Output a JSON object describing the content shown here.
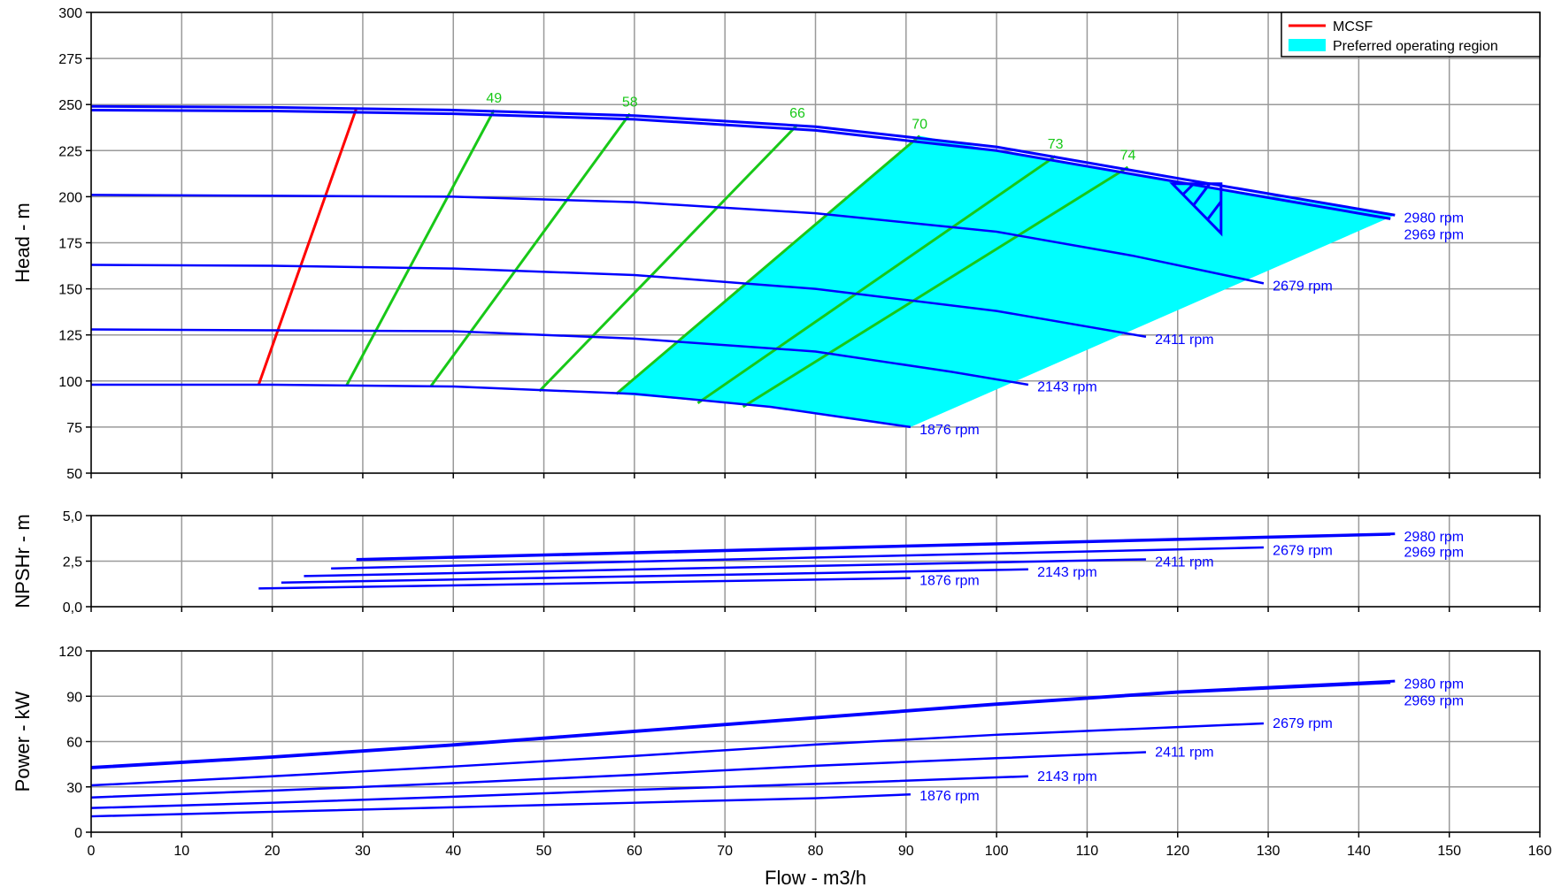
{
  "chart_data": [
    {
      "type": "line",
      "id": "head",
      "ylabel": "Head - m",
      "xlim": [
        0,
        160
      ],
      "ylim": [
        50,
        300
      ],
      "x_ticks": [
        0,
        10,
        20,
        30,
        40,
        50,
        60,
        70,
        80,
        90,
        100,
        110,
        120,
        130,
        140,
        150,
        160
      ],
      "y_ticks": [
        50,
        75,
        100,
        125,
        150,
        175,
        200,
        225,
        250,
        275,
        300
      ],
      "y_tick_labels": [
        "50",
        "75",
        "100",
        "125",
        "150",
        "175",
        "200",
        "225",
        "250",
        "275",
        "300"
      ],
      "grid": true,
      "legend_placement": "top-right",
      "legend": [
        {
          "label": "MCSF",
          "kind": "line",
          "color": "#ff0000"
        },
        {
          "label": "Preferred operating region",
          "kind": "area",
          "color": "#00ffff"
        }
      ],
      "series": [
        {
          "name": "2980 rpm",
          "color": "#0000ff",
          "width": 3,
          "points": [
            [
              0,
              249
            ],
            [
              20,
              248.5
            ],
            [
              40,
              247
            ],
            [
              60,
              244
            ],
            [
              80,
              238
            ],
            [
              100,
              227
            ],
            [
              120,
              210
            ],
            [
              144,
              190
            ]
          ]
        },
        {
          "name": "2969 rpm",
          "color": "#0000ff",
          "width": 3,
          "points": [
            [
              0,
              247
            ],
            [
              20,
              246.5
            ],
            [
              40,
              245
            ],
            [
              60,
              242
            ],
            [
              80,
              236
            ],
            [
              100,
              225
            ],
            [
              120,
              208
            ],
            [
              143.5,
              188
            ]
          ]
        },
        {
          "name": "2679 rpm",
          "color": "#0000ff",
          "width": 2.5,
          "points": [
            [
              0,
              201
            ],
            [
              20,
              200.5
            ],
            [
              40,
              200
            ],
            [
              60,
              197
            ],
            [
              80,
              191
            ],
            [
              100,
              181
            ],
            [
              115,
              168
            ],
            [
              129.5,
              153
            ]
          ]
        },
        {
          "name": "2411 rpm",
          "color": "#0000ff",
          "width": 2.5,
          "points": [
            [
              0,
              163
            ],
            [
              20,
              162.5
            ],
            [
              40,
              161
            ],
            [
              60,
              157.5
            ],
            [
              80,
              150
            ],
            [
              100,
              138
            ],
            [
              116.5,
              124
            ]
          ]
        },
        {
          "name": "2143 rpm",
          "color": "#0000ff",
          "width": 2.5,
          "points": [
            [
              0,
              128
            ],
            [
              20,
              127.5
            ],
            [
              40,
              127
            ],
            [
              60,
              123
            ],
            [
              80,
              116
            ],
            [
              95,
              105
            ],
            [
              103.5,
              98
            ]
          ]
        },
        {
          "name": "1876 rpm",
          "color": "#0000ff",
          "width": 2.5,
          "points": [
            [
              0,
              98
            ],
            [
              20,
              98
            ],
            [
              40,
              97
            ],
            [
              60,
              93
            ],
            [
              75,
              86
            ],
            [
              90.5,
              75
            ]
          ]
        }
      ],
      "mcsf": {
        "color": "#ff0000",
        "points": [
          [
            18.5,
            98
          ],
          [
            29.3,
            248
          ]
        ]
      },
      "efficiency_lines": [
        {
          "label": "49",
          "points": [
            [
              28.2,
              97.5
            ],
            [
              44.5,
              247
            ]
          ],
          "label_at": [
            44.5,
            251
          ]
        },
        {
          "label": "58",
          "points": [
            [
              37.5,
              97
            ],
            [
              59.5,
              245
            ]
          ],
          "label_at": [
            59.5,
            249
          ]
        },
        {
          "label": "66",
          "points": [
            [
              49.5,
              94.5
            ],
            [
              78,
              239
            ]
          ],
          "label_at": [
            78,
            243
          ]
        },
        {
          "label": "70",
          "points": [
            [
              58,
              93
            ],
            [
              91.5,
              233
            ]
          ],
          "label_at": [
            91.5,
            237
          ]
        },
        {
          "label": "73",
          "points": [
            [
              67,
              88
            ],
            [
              106.5,
              222
            ]
          ],
          "label_at": [
            106.5,
            226
          ]
        },
        {
          "label": "74",
          "points": [
            [
              72,
              86
            ],
            [
              114.5,
              216
            ]
          ],
          "label_at": [
            114.5,
            220
          ]
        }
      ],
      "efficiency_color": "#18c818",
      "preferred_region": {
        "color": "#00ffff",
        "polygon": [
          [
            58,
            93
          ],
          [
            75,
            86
          ],
          [
            90.5,
            75
          ],
          [
            144,
            190
          ],
          [
            120,
            208
          ],
          [
            100,
            225
          ],
          [
            91.5,
            233
          ]
        ]
      },
      "duty_point": {
        "flow": 124.5,
        "head": 207,
        "color": "#0000ff"
      },
      "rpm_labels": [
        {
          "text": "2980 rpm",
          "at": [
            145,
            186
          ]
        },
        {
          "text": "2969 rpm",
          "at": [
            145,
            177
          ]
        },
        {
          "text": "2679 rpm",
          "at": [
            130.5,
            149
          ]
        },
        {
          "text": "2411 rpm",
          "at": [
            117.5,
            120
          ]
        },
        {
          "text": "2143 rpm",
          "at": [
            104.5,
            94.5
          ]
        },
        {
          "text": "1876 rpm",
          "at": [
            91.5,
            71
          ]
        }
      ]
    },
    {
      "type": "line",
      "id": "npshr",
      "ylabel": "NPSHr - m",
      "xlim": [
        0,
        160
      ],
      "ylim": [
        0,
        5
      ],
      "x_ticks": [
        0,
        10,
        20,
        30,
        40,
        50,
        60,
        70,
        80,
        90,
        100,
        110,
        120,
        130,
        140,
        150,
        160
      ],
      "y_ticks": [
        0,
        2.5,
        5
      ],
      "y_tick_labels": [
        "0,0",
        "2,5",
        "5,0"
      ],
      "grid": true,
      "series": [
        {
          "name": "2980 rpm",
          "color": "#0000ff",
          "width": 3,
          "points": [
            [
              29.3,
              2.6
            ],
            [
              144,
              4.0
            ]
          ]
        },
        {
          "name": "2969 rpm",
          "color": "#0000ff",
          "width": 3,
          "points": [
            [
              29.3,
              2.57
            ],
            [
              143.5,
              3.97
            ]
          ]
        },
        {
          "name": "2679 rpm",
          "color": "#0000ff",
          "width": 2.5,
          "points": [
            [
              26.5,
              2.1
            ],
            [
              129.5,
              3.25
            ]
          ]
        },
        {
          "name": "2411 rpm",
          "color": "#0000ff",
          "width": 2.5,
          "points": [
            [
              23.5,
              1.68
            ],
            [
              116.5,
              2.6
            ]
          ]
        },
        {
          "name": "2143 rpm",
          "color": "#0000ff",
          "width": 2.5,
          "points": [
            [
              21,
              1.32
            ],
            [
              103.5,
              2.05
            ]
          ]
        },
        {
          "name": "1876 rpm",
          "color": "#0000ff",
          "width": 2.5,
          "points": [
            [
              18.5,
              1.0
            ],
            [
              90.5,
              1.57
            ]
          ]
        }
      ],
      "rpm_labels": [
        {
          "text": "2980 rpm",
          "at": [
            145,
            3.6
          ]
        },
        {
          "text": "2969 rpm",
          "at": [
            145,
            2.75
          ]
        },
        {
          "text": "2679 rpm",
          "at": [
            130.5,
            2.85
          ]
        },
        {
          "text": "2411 rpm",
          "at": [
            117.5,
            2.2
          ]
        },
        {
          "text": "2143 rpm",
          "at": [
            104.5,
            1.65
          ]
        },
        {
          "text": "1876 rpm",
          "at": [
            91.5,
            1.2
          ]
        }
      ]
    },
    {
      "type": "line",
      "id": "power",
      "ylabel": "Power - kW",
      "xlabel": "Flow - m3/h",
      "xlim": [
        0,
        160
      ],
      "ylim": [
        0,
        120
      ],
      "x_ticks": [
        0,
        10,
        20,
        30,
        40,
        50,
        60,
        70,
        80,
        90,
        100,
        110,
        120,
        130,
        140,
        150,
        160
      ],
      "x_tick_labels": [
        "0",
        "10",
        "20",
        "30",
        "40",
        "50",
        "60",
        "70",
        "80",
        "90",
        "100",
        "110",
        "120",
        "130",
        "140",
        "150",
        "160"
      ],
      "y_ticks": [
        0,
        30,
        60,
        90,
        120
      ],
      "y_tick_labels": [
        "0",
        "30",
        "60",
        "90",
        "120"
      ],
      "grid": true,
      "series": [
        {
          "name": "2980 rpm",
          "color": "#0000ff",
          "width": 3,
          "points": [
            [
              0,
              43
            ],
            [
              20,
              50
            ],
            [
              40,
              58
            ],
            [
              60,
              67
            ],
            [
              80,
              76
            ],
            [
              100,
              85
            ],
            [
              120,
              93
            ],
            [
              144,
              100
            ]
          ]
        },
        {
          "name": "2969 rpm",
          "color": "#0000ff",
          "width": 3,
          "points": [
            [
              0,
              42.5
            ],
            [
              20,
              49.5
            ],
            [
              40,
              57.5
            ],
            [
              60,
              66.5
            ],
            [
              80,
              75.5
            ],
            [
              100,
              84.5
            ],
            [
              120,
              92.5
            ],
            [
              143.5,
              99
            ]
          ]
        },
        {
          "name": "2679 rpm",
          "color": "#0000ff",
          "width": 2.5,
          "points": [
            [
              0,
              31
            ],
            [
              20,
              37
            ],
            [
              40,
              43.5
            ],
            [
              60,
              50.5
            ],
            [
              80,
              58
            ],
            [
              100,
              64.5
            ],
            [
              129.5,
              72
            ]
          ]
        },
        {
          "name": "2411 rpm",
          "color": "#0000ff",
          "width": 2.5,
          "points": [
            [
              0,
              23
            ],
            [
              20,
              27.5
            ],
            [
              40,
              32.5
            ],
            [
              60,
              38
            ],
            [
              80,
              44
            ],
            [
              100,
              49
            ],
            [
              116.5,
              53
            ]
          ]
        },
        {
          "name": "2143 rpm",
          "color": "#0000ff",
          "width": 2.5,
          "points": [
            [
              0,
              16
            ],
            [
              20,
              19.5
            ],
            [
              40,
              23.5
            ],
            [
              60,
              28
            ],
            [
              80,
              32
            ],
            [
              103.5,
              37
            ]
          ]
        },
        {
          "name": "1876 rpm",
          "color": "#0000ff",
          "width": 2.5,
          "points": [
            [
              0,
              10.5
            ],
            [
              20,
              13.5
            ],
            [
              40,
              16.5
            ],
            [
              60,
              19.5
            ],
            [
              80,
              22.5
            ],
            [
              90.5,
              25
            ]
          ]
        }
      ],
      "rpm_labels": [
        {
          "text": "2980 rpm",
          "at": [
            145,
            95
          ]
        },
        {
          "text": "2969 rpm",
          "at": [
            145,
            84
          ]
        },
        {
          "text": "2679 rpm",
          "at": [
            130.5,
            69
          ]
        },
        {
          "text": "2411 rpm",
          "at": [
            117.5,
            50
          ]
        },
        {
          "text": "2143 rpm",
          "at": [
            104.5,
            34
          ]
        },
        {
          "text": "1876 rpm",
          "at": [
            91.5,
            21
          ]
        }
      ]
    }
  ]
}
